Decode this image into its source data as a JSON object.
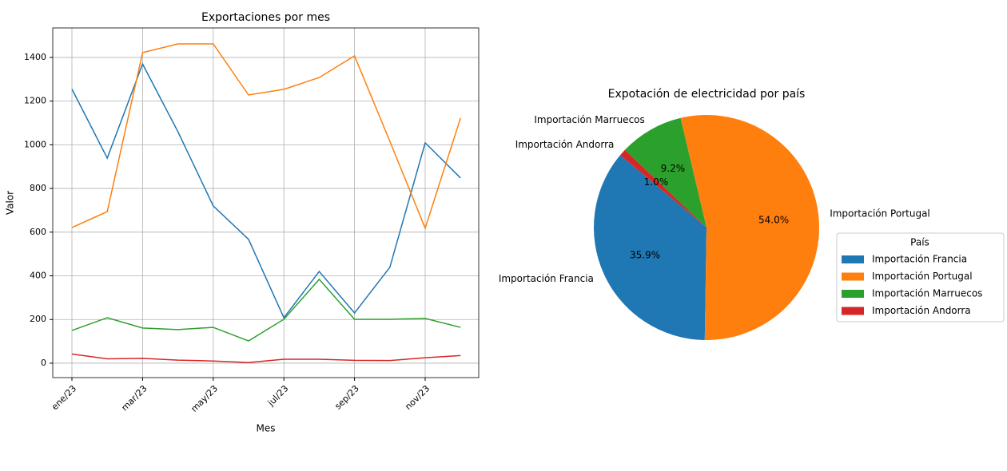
{
  "chart_data": [
    {
      "type": "line",
      "title": "Exportaciones por mes",
      "x_label": "Mes",
      "y_label": "Valor",
      "categories": [
        "ene/23",
        null,
        "mar/23",
        null,
        "may/23",
        null,
        "jul/23",
        null,
        "sep/23",
        null,
        "nov/23",
        null
      ],
      "series": [
        {
          "name": "Importación Francia",
          "color": "#1f77b4",
          "values": [
            1255,
            939,
            1370,
            1060,
            720,
            567,
            208,
            420,
            230,
            439,
            1009,
            848
          ]
        },
        {
          "name": "Importación Portugal",
          "color": "#ff7f0e",
          "values": [
            621,
            694,
            1422,
            1462,
            1462,
            1228,
            1254,
            1308,
            1407,
            1016,
            618,
            1122
          ]
        },
        {
          "name": "Importación Marruecos",
          "color": "#2ca02c",
          "values": [
            150,
            208,
            161,
            154,
            164,
            102,
            201,
            384,
            201,
            201,
            205,
            164
          ]
        },
        {
          "name": "Importación Andorra",
          "color": "#d62728",
          "values": [
            42,
            20,
            22,
            14,
            10,
            3,
            18,
            18,
            13,
            12,
            25,
            35
          ]
        }
      ],
      "ylim": [
        -66,
        1535
      ],
      "yticks": [
        0,
        200,
        400,
        600,
        800,
        1000,
        1200,
        1400
      ],
      "grid": true
    },
    {
      "type": "pie",
      "title": "Expotación de electricidad por país",
      "labels": [
        "Importación Francia",
        "Importación Portugal",
        "Importación Marruecos",
        "Importación Andorra"
      ],
      "values": [
        35.9,
        54.0,
        9.2,
        1.0
      ],
      "value_labels": [
        "35.9%",
        "54.0%",
        "9.2%",
        "1.0%"
      ],
      "colors": [
        "#1f77b4",
        "#ff7f0e",
        "#2ca02c",
        "#d62728"
      ],
      "start_angle": 140,
      "legend_title": "País",
      "legend": "right"
    }
  ]
}
